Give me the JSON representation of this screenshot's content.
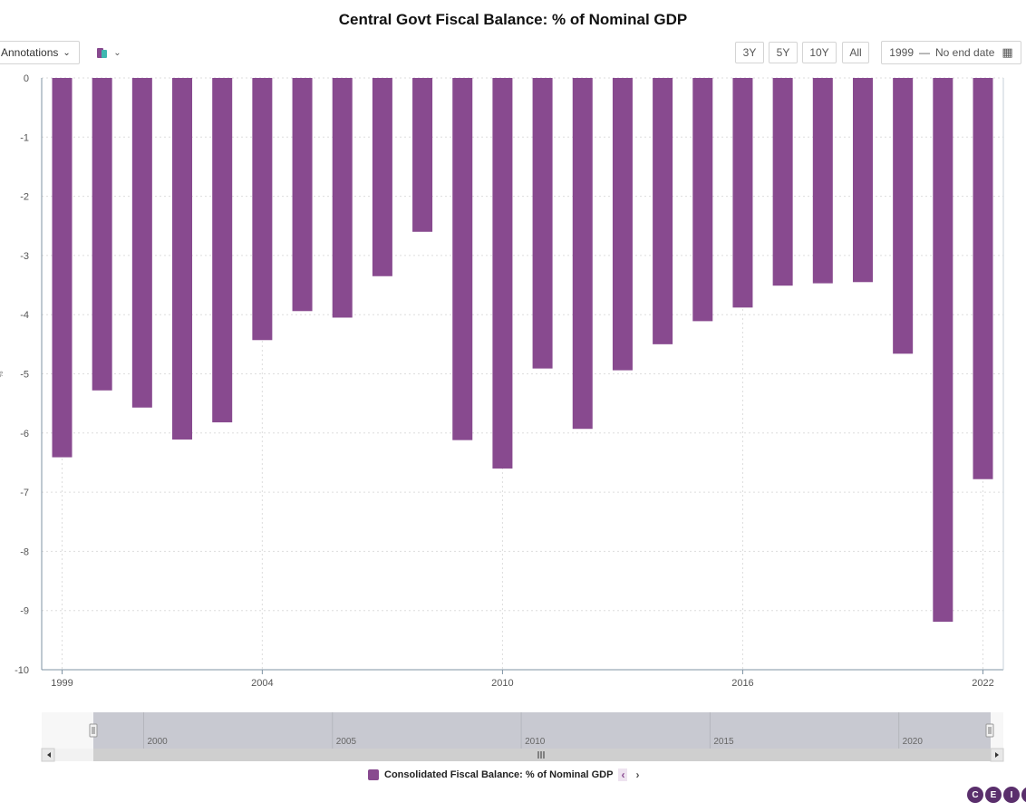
{
  "title": "Central Govt Fiscal Balance: % of Nominal GDP",
  "toolbar": {
    "annotations_label": "Annotations",
    "range_buttons": [
      "3Y",
      "5Y",
      "10Y",
      "All"
    ],
    "date_start": "1999",
    "date_sep": "—",
    "date_end": "No end date"
  },
  "legend": {
    "label": "Consolidated Fiscal Balance: % of Nominal GDP",
    "prev": "‹",
    "next": "›"
  },
  "logo": [
    "C",
    "E",
    "I",
    "C"
  ],
  "colors": {
    "bar": "#884a8f",
    "axis": "#7f93a3",
    "grid": "#dddddd",
    "navigator": "#c8c9d1"
  },
  "chart_data": {
    "type": "bar",
    "title": "Central Govt Fiscal Balance: % of Nominal GDP",
    "ylabel": "%",
    "ylim": [
      -10,
      0
    ],
    "yticks": [
      0,
      -1,
      -2,
      -3,
      -4,
      -5,
      -6,
      -7,
      -8,
      -9,
      -10
    ],
    "x_ticks": [
      "1999",
      "2004",
      "2010",
      "2016",
      "2022"
    ],
    "categories": [
      "1999",
      "2000",
      "2001",
      "2002",
      "2003",
      "2004",
      "2005",
      "2006",
      "2007",
      "2008",
      "2009",
      "2010",
      "2011",
      "2012",
      "2013",
      "2014",
      "2015",
      "2016",
      "2017",
      "2018",
      "2019",
      "2020",
      "2021",
      "2022"
    ],
    "series": [
      {
        "name": "Consolidated Fiscal Balance: % of Nominal GDP",
        "values": [
          -6.41,
          -5.28,
          -5.57,
          -6.11,
          -5.82,
          -4.43,
          -3.94,
          -4.05,
          -3.35,
          -2.6,
          -6.12,
          -6.6,
          -4.91,
          -5.93,
          -4.94,
          -4.5,
          -4.11,
          -3.88,
          -3.51,
          -3.47,
          -3.45,
          -4.66,
          -9.19,
          -6.78
        ]
      }
    ],
    "navigator_ticks": [
      "2000",
      "2005",
      "2010",
      "2015",
      "2020"
    ],
    "grid": true,
    "legend_position": "bottom-center"
  }
}
